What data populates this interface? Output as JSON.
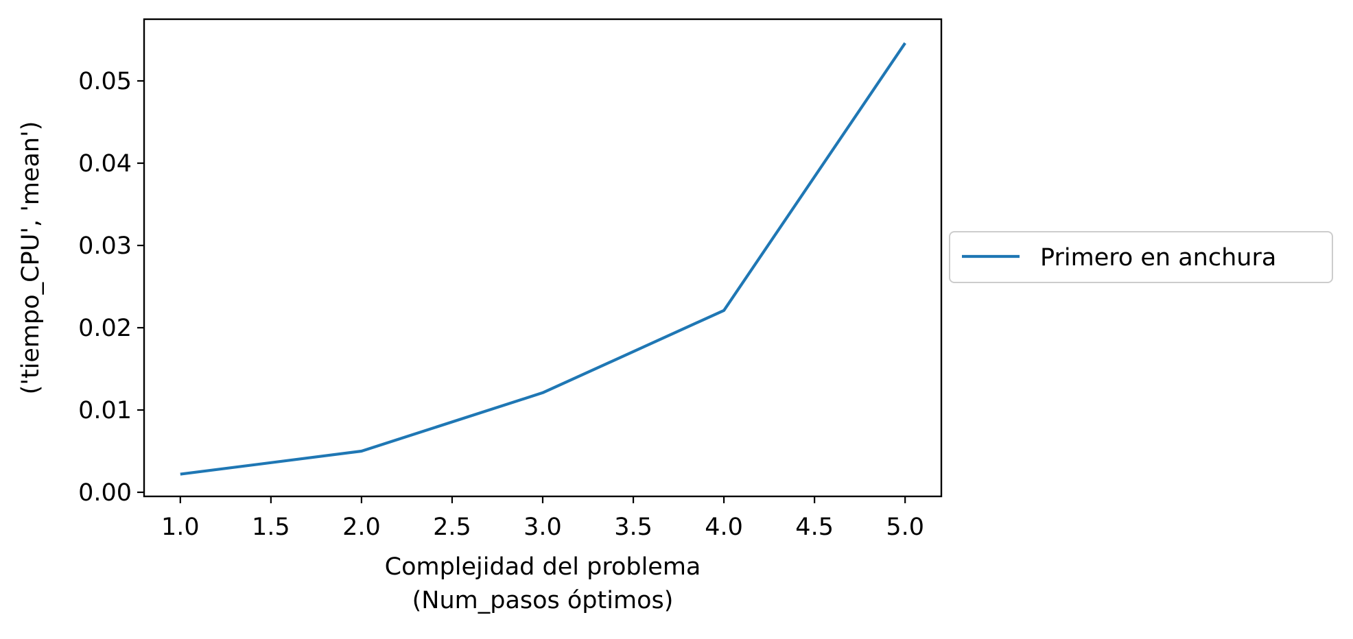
{
  "chart_data": {
    "type": "line",
    "x": [
      1.0,
      2.0,
      3.0,
      4.0,
      5.0
    ],
    "series": [
      {
        "name": "Primero en anchura",
        "values": [
          0.0022,
          0.005,
          0.0121,
          0.0221,
          0.0546
        ]
      }
    ],
    "xlabel_lines": [
      "Complejidad del problema",
      "(Num_pasos óptimos)"
    ],
    "ylabel": "('tiempo_CPU', 'mean')",
    "xlim": [
      0.8,
      5.2
    ],
    "ylim": [
      -0.0005,
      0.0575
    ],
    "xticks": [
      1.0,
      1.5,
      2.0,
      2.5,
      3.0,
      3.5,
      4.0,
      4.5,
      5.0
    ],
    "xtick_labels": [
      "1.0",
      "1.5",
      "2.0",
      "2.5",
      "3.0",
      "3.5",
      "4.0",
      "4.5",
      "5.0"
    ],
    "yticks": [
      0.0,
      0.01,
      0.02,
      0.03,
      0.04,
      0.05
    ],
    "ytick_labels": [
      "0.00",
      "0.01",
      "0.02",
      "0.03",
      "0.04",
      "0.05"
    ],
    "grid": false,
    "legend_position": "outside-right",
    "colors": {
      "series": "#1f77b4",
      "axes": "#000000",
      "background": "#ffffff"
    }
  }
}
